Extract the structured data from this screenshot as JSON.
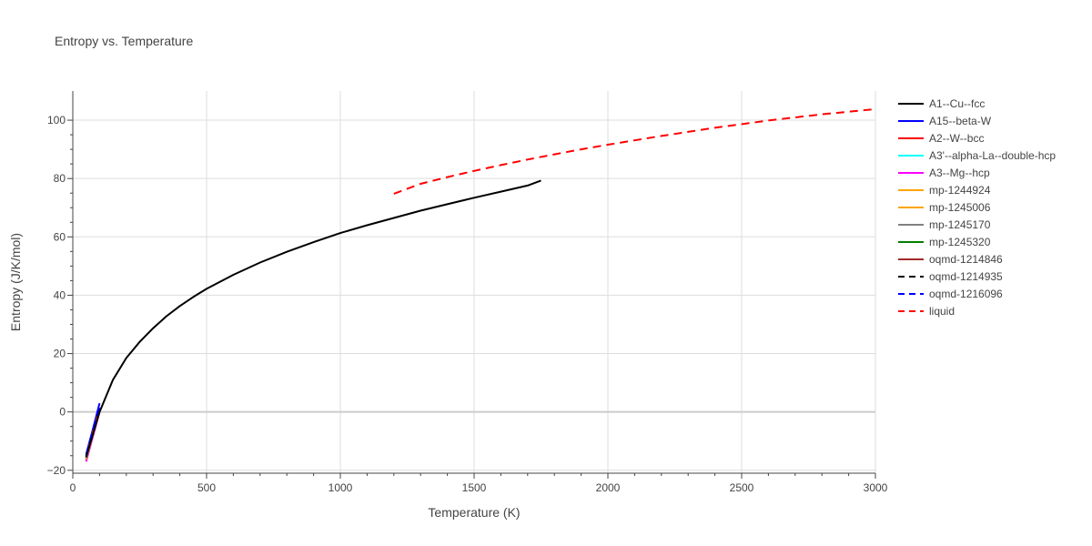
{
  "chart_data": {
    "type": "line",
    "title": "Entropy vs. Temperature",
    "xlabel": "Temperature (K)",
    "ylabel": "Entropy (J/K/mol)",
    "xlim": [
      0,
      3000
    ],
    "ylim": [
      -21,
      110
    ],
    "x_ticks": [
      0,
      500,
      1000,
      1500,
      2000,
      2500,
      3000
    ],
    "x_tick_labels": [
      "0",
      "500",
      "1000",
      "1500",
      "2000",
      "2500",
      "3000"
    ],
    "y_ticks": [
      -20,
      0,
      20,
      40,
      60,
      80,
      100
    ],
    "y_tick_labels": [
      "−20",
      "0",
      "20",
      "40",
      "60",
      "80",
      "100"
    ],
    "grid": true,
    "legend_position": "right",
    "series": [
      {
        "name": "A1--Cu--fcc",
        "color": "#000000",
        "dash": "solid",
        "x": [
          50,
          100,
          150,
          200,
          250,
          300,
          350,
          400,
          450,
          500,
          600,
          700,
          800,
          900,
          1000,
          1100,
          1200,
          1300,
          1400,
          1500,
          1600,
          1700,
          1750
        ],
        "y": [
          -15.5,
          0,
          11,
          18.5,
          24,
          28.7,
          32.8,
          36.3,
          39.4,
          42.2,
          47.0,
          51.2,
          54.9,
          58.2,
          61.3,
          64.0,
          66.5,
          69.0,
          71.2,
          73.4,
          75.5,
          77.6,
          79.3
        ]
      },
      {
        "name": "A15--beta-W",
        "color": "#0000ff",
        "dash": "solid",
        "x": [
          50,
          75,
          100
        ],
        "y": [
          -14.5,
          -6,
          3
        ]
      },
      {
        "name": "A2--W--bcc",
        "color": "#ff0000",
        "dash": "solid",
        "x": [
          50,
          75,
          100
        ],
        "y": [
          -16.5,
          -8,
          0.5
        ]
      },
      {
        "name": "A3'--alpha-La--double-hcp",
        "color": "#00ffff",
        "dash": "solid",
        "x": [
          50,
          75,
          100
        ],
        "y": [
          -16.8,
          -8.3,
          0.2
        ]
      },
      {
        "name": "A3--Mg--hcp",
        "color": "#ff00ff",
        "dash": "solid",
        "x": [
          50,
          75,
          100
        ],
        "y": [
          -17,
          -8.5,
          0
        ]
      },
      {
        "name": "mp-1244924",
        "color": "#ffa500",
        "dash": "solid",
        "x": [
          50,
          75,
          100
        ],
        "y": [
          -16.2,
          -7.8,
          0.6
        ]
      },
      {
        "name": "mp-1245006",
        "color": "#ffa500",
        "dash": "solid",
        "x": [
          50,
          75,
          100
        ],
        "y": [
          -16.0,
          -7.6,
          0.8
        ]
      },
      {
        "name": "mp-1245170",
        "color": "#808080",
        "dash": "solid",
        "x": [
          50,
          75,
          100
        ],
        "y": [
          -15.8,
          -7.4,
          1.0
        ]
      },
      {
        "name": "mp-1245320",
        "color": "#008000",
        "dash": "solid",
        "x": [
          50,
          75,
          100
        ],
        "y": [
          -15.6,
          -7.2,
          1.2
        ]
      },
      {
        "name": "oqmd-1214846",
        "color": "#a52a2a",
        "dash": "solid",
        "x": [
          50,
          75,
          100
        ],
        "y": [
          -15.4,
          -7.0,
          1.4
        ]
      },
      {
        "name": "oqmd-1214935",
        "color": "#000000",
        "dash": "dash",
        "x": [
          50,
          75,
          100
        ],
        "y": [
          -15.0,
          -6.8,
          1.6
        ]
      },
      {
        "name": "oqmd-1216096",
        "color": "#0000ff",
        "dash": "dash",
        "x": [
          50,
          75,
          100
        ],
        "y": [
          -14.8,
          -6.6,
          1.8
        ]
      },
      {
        "name": "liquid",
        "color": "#ff0000",
        "dash": "dash",
        "x": [
          1200,
          1300,
          1400,
          1500,
          1600,
          1700,
          1800,
          1900,
          2000,
          2200,
          2400,
          2600,
          2800,
          3000
        ],
        "y": [
          74.8,
          78.2,
          80.5,
          82.6,
          84.6,
          86.5,
          88.3,
          90.0,
          91.6,
          94.6,
          97.4,
          99.9,
          102.0,
          103.8
        ]
      }
    ]
  }
}
